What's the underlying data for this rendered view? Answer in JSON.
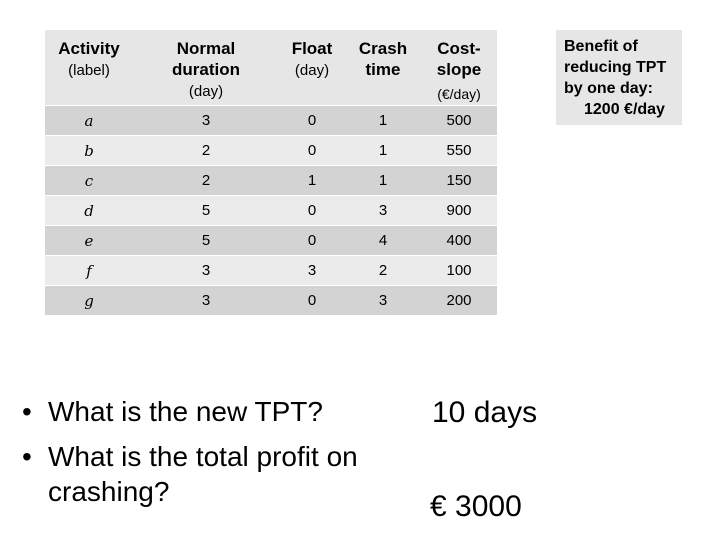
{
  "table": {
    "headers": [
      {
        "main": "Activity",
        "sub": "(label)"
      },
      {
        "main": "Normal duration",
        "sub": "(day)"
      },
      {
        "main": "Float",
        "sub": "(day)"
      },
      {
        "main": "Crash time",
        "sub": ""
      },
      {
        "main": "Cost-slope",
        "sub": "(€/day)"
      }
    ],
    "rows": [
      [
        "a",
        "3",
        "0",
        "1",
        "500"
      ],
      [
        "b",
        "2",
        "0",
        "1",
        "550"
      ],
      [
        "c",
        "2",
        "1",
        "1",
        "150"
      ],
      [
        "d",
        "5",
        "0",
        "3",
        "900"
      ],
      [
        "e",
        "5",
        "0",
        "4",
        "400"
      ],
      [
        "f",
        "3",
        "3",
        "2",
        "100"
      ],
      [
        "g",
        "3",
        "0",
        "3",
        "200"
      ]
    ]
  },
  "benefit": {
    "line1": "Benefit of",
    "line2": "reducing TPT",
    "line3": "by one day:",
    "value": "1200 €/day"
  },
  "questions": {
    "bullet": "•",
    "q1": "What is the new TPT?",
    "q2": "What is the total profit on crashing?"
  },
  "answers": {
    "a1": "10 days",
    "a2": "€ 3000"
  }
}
